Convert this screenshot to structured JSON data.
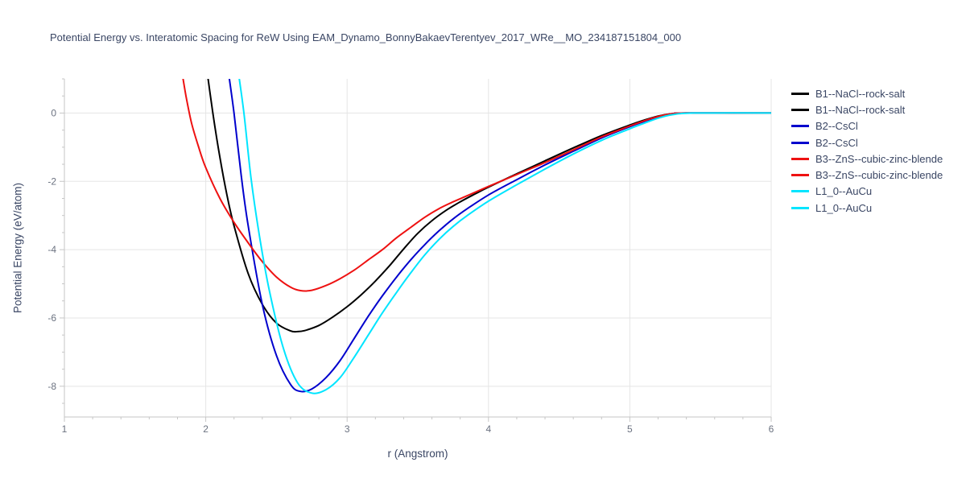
{
  "chart_data": {
    "type": "line",
    "title": "Potential Energy vs. Interatomic Spacing for ReW Using EAM_Dynamo_BonnyBakaevTerentyev_2017_WRe__MO_234187151804_000",
    "xlabel": "r (Angstrom)",
    "ylabel": "Potential Energy (eV/atom)",
    "xlim": [
      1,
      6
    ],
    "ylim": [
      -8.9,
      1.0
    ],
    "xticks": [
      1,
      2,
      3,
      4,
      5,
      6
    ],
    "yticks": [
      0,
      -2,
      -4,
      -6,
      -8
    ],
    "x_minor_step": 0.2,
    "y_minor_step": 0.5,
    "grid": true,
    "legend_position": "right",
    "colors": {
      "grid": "#e5e5e5",
      "axis": "#c6c6c6",
      "tick_label": "#6b7280"
    },
    "series": [
      {
        "name": "B1--NaCl--rock-salt",
        "color": "#000000",
        "points": [
          [
            2.0,
            1.5
          ],
          [
            2.05,
            0.0
          ],
          [
            2.1,
            -1.3
          ],
          [
            2.15,
            -2.4
          ],
          [
            2.2,
            -3.3
          ],
          [
            2.3,
            -4.7
          ],
          [
            2.4,
            -5.6
          ],
          [
            2.5,
            -6.15
          ],
          [
            2.6,
            -6.38
          ],
          [
            2.65,
            -6.4
          ],
          [
            2.7,
            -6.37
          ],
          [
            2.8,
            -6.22
          ],
          [
            2.9,
            -5.97
          ],
          [
            3.0,
            -5.67
          ],
          [
            3.1,
            -5.32
          ],
          [
            3.2,
            -4.92
          ],
          [
            3.3,
            -4.47
          ],
          [
            3.4,
            -3.98
          ],
          [
            3.5,
            -3.52
          ],
          [
            3.6,
            -3.15
          ],
          [
            3.7,
            -2.85
          ],
          [
            3.8,
            -2.6
          ],
          [
            3.9,
            -2.38
          ],
          [
            4.0,
            -2.17
          ],
          [
            4.2,
            -1.78
          ],
          [
            4.4,
            -1.4
          ],
          [
            4.6,
            -1.02
          ],
          [
            4.8,
            -0.66
          ],
          [
            5.0,
            -0.35
          ],
          [
            5.1,
            -0.21
          ],
          [
            5.2,
            -0.09
          ],
          [
            5.3,
            -0.02
          ],
          [
            5.4,
            0.0
          ],
          [
            6.0,
            0.0
          ]
        ]
      },
      {
        "name": "B2--CsCl",
        "color": "#0000cd",
        "points": [
          [
            2.15,
            1.5
          ],
          [
            2.2,
            0.0
          ],
          [
            2.25,
            -1.8
          ],
          [
            2.3,
            -3.3
          ],
          [
            2.4,
            -5.6
          ],
          [
            2.5,
            -7.1
          ],
          [
            2.6,
            -7.95
          ],
          [
            2.67,
            -8.15
          ],
          [
            2.75,
            -8.08
          ],
          [
            2.85,
            -7.75
          ],
          [
            2.95,
            -7.25
          ],
          [
            3.05,
            -6.6
          ],
          [
            3.15,
            -5.95
          ],
          [
            3.25,
            -5.35
          ],
          [
            3.35,
            -4.8
          ],
          [
            3.45,
            -4.3
          ],
          [
            3.55,
            -3.85
          ],
          [
            3.65,
            -3.45
          ],
          [
            3.75,
            -3.1
          ],
          [
            3.85,
            -2.8
          ],
          [
            4.0,
            -2.4
          ],
          [
            4.2,
            -1.95
          ],
          [
            4.4,
            -1.52
          ],
          [
            4.6,
            -1.12
          ],
          [
            4.8,
            -0.73
          ],
          [
            5.0,
            -0.4
          ],
          [
            5.1,
            -0.25
          ],
          [
            5.2,
            -0.11
          ],
          [
            5.3,
            -0.02
          ],
          [
            5.4,
            0.0
          ],
          [
            6.0,
            0.0
          ]
        ]
      },
      {
        "name": "B3--ZnS--cubic-zinc-blende",
        "color": "#ee1111",
        "points": [
          [
            1.82,
            1.5
          ],
          [
            1.86,
            0.5
          ],
          [
            1.9,
            -0.3
          ],
          [
            1.95,
            -1.0
          ],
          [
            2.0,
            -1.6
          ],
          [
            2.1,
            -2.5
          ],
          [
            2.2,
            -3.2
          ],
          [
            2.3,
            -3.8
          ],
          [
            2.4,
            -4.35
          ],
          [
            2.5,
            -4.8
          ],
          [
            2.6,
            -5.1
          ],
          [
            2.67,
            -5.2
          ],
          [
            2.75,
            -5.19
          ],
          [
            2.85,
            -5.05
          ],
          [
            2.95,
            -4.85
          ],
          [
            3.05,
            -4.6
          ],
          [
            3.15,
            -4.3
          ],
          [
            3.25,
            -4.0
          ],
          [
            3.35,
            -3.65
          ],
          [
            3.45,
            -3.35
          ],
          [
            3.55,
            -3.05
          ],
          [
            3.65,
            -2.8
          ],
          [
            3.75,
            -2.6
          ],
          [
            3.85,
            -2.42
          ],
          [
            4.0,
            -2.15
          ],
          [
            4.2,
            -1.8
          ],
          [
            4.4,
            -1.45
          ],
          [
            4.6,
            -1.08
          ],
          [
            4.8,
            -0.7
          ],
          [
            5.0,
            -0.38
          ],
          [
            5.1,
            -0.23
          ],
          [
            5.2,
            -0.1
          ],
          [
            5.3,
            -0.02
          ],
          [
            5.4,
            0.0
          ],
          [
            6.0,
            0.0
          ]
        ]
      },
      {
        "name": "L1_0--AuCu",
        "color": "#00e5ff",
        "points": [
          [
            2.22,
            1.5
          ],
          [
            2.27,
            0.0
          ],
          [
            2.32,
            -1.9
          ],
          [
            2.38,
            -3.6
          ],
          [
            2.45,
            -5.2
          ],
          [
            2.55,
            -6.9
          ],
          [
            2.65,
            -7.9
          ],
          [
            2.75,
            -8.2
          ],
          [
            2.85,
            -8.1
          ],
          [
            2.95,
            -7.75
          ],
          [
            3.05,
            -7.15
          ],
          [
            3.15,
            -6.5
          ],
          [
            3.25,
            -5.85
          ],
          [
            3.35,
            -5.25
          ],
          [
            3.45,
            -4.68
          ],
          [
            3.55,
            -4.15
          ],
          [
            3.65,
            -3.7
          ],
          [
            3.75,
            -3.32
          ],
          [
            3.85,
            -3.0
          ],
          [
            4.0,
            -2.58
          ],
          [
            4.2,
            -2.1
          ],
          [
            4.4,
            -1.64
          ],
          [
            4.6,
            -1.2
          ],
          [
            4.8,
            -0.8
          ],
          [
            5.0,
            -0.46
          ],
          [
            5.1,
            -0.3
          ],
          [
            5.2,
            -0.15
          ],
          [
            5.3,
            -0.05
          ],
          [
            5.45,
            0.0
          ],
          [
            6.0,
            0.0
          ]
        ]
      }
    ],
    "legend": [
      {
        "label": "B1--NaCl--rock-salt",
        "color": "#000000"
      },
      {
        "label": "B1--NaCl--rock-salt",
        "color": "#000000"
      },
      {
        "label": "B2--CsCl",
        "color": "#0000cd"
      },
      {
        "label": "B2--CsCl",
        "color": "#0000cd"
      },
      {
        "label": "B3--ZnS--cubic-zinc-blende",
        "color": "#ee1111"
      },
      {
        "label": "B3--ZnS--cubic-zinc-blende",
        "color": "#ee1111"
      },
      {
        "label": "L1_0--AuCu",
        "color": "#00e5ff"
      },
      {
        "label": "L1_0--AuCu",
        "color": "#00e5ff"
      }
    ]
  }
}
